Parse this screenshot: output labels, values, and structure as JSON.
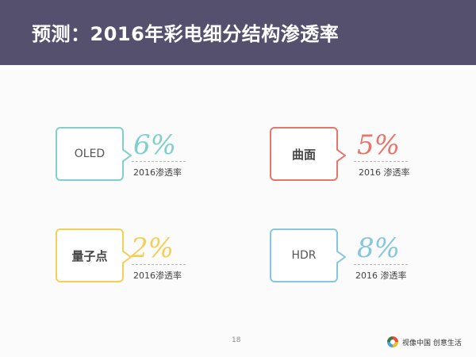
{
  "slide": {
    "title": "预测：2016年彩电细分结构渗透率",
    "page_number": "18",
    "brand": "视像中国 创意生活",
    "colors": {
      "header": "#55506d",
      "oled": "#7fcfcc",
      "curved": "#e9746a",
      "quantum_dot": "#f4cf55",
      "hdr": "#86c6e0"
    }
  },
  "items": [
    {
      "label": "OLED",
      "value": "6%",
      "caption": "2016渗透率"
    },
    {
      "label": "曲面",
      "value": "5%",
      "caption": "2016 渗透率"
    },
    {
      "label": "量子点",
      "value": "2%",
      "caption": "2016渗透率"
    },
    {
      "label": "HDR",
      "value": "8%",
      "caption": "2016 渗透率"
    }
  ]
}
